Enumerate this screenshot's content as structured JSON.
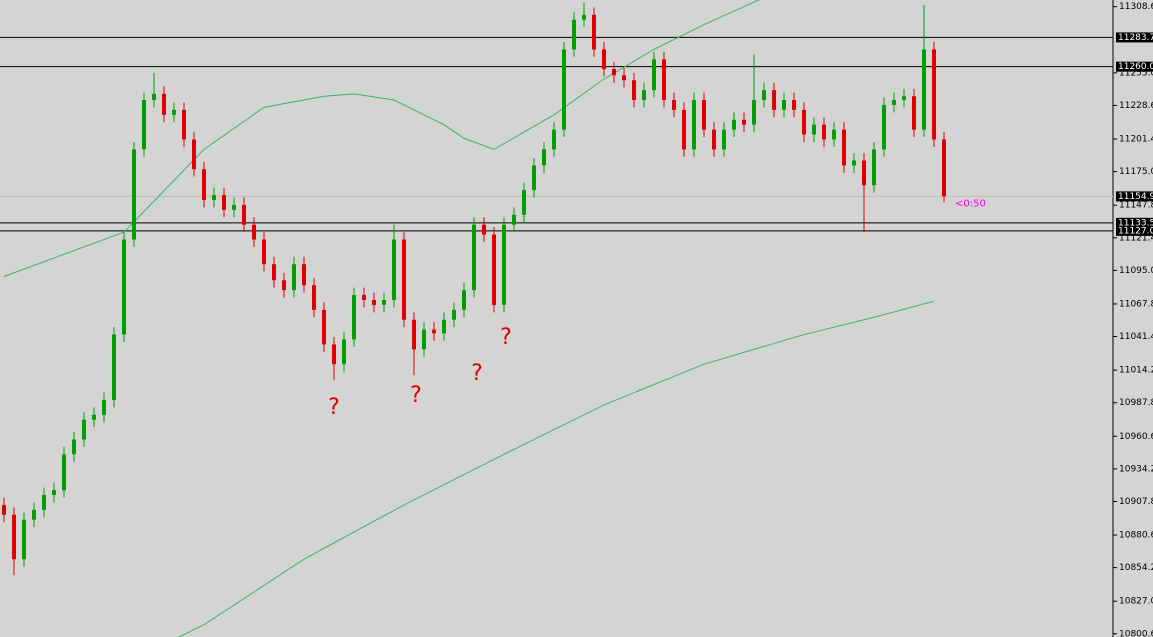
{
  "chart_data": {
    "type": "candlestick",
    "bull_color": "#00a000",
    "bear_color": "#e00000",
    "ylim": [
      10798,
      11314
    ],
    "yticks": [
      {
        "value": 11308.6,
        "label": "11308.60"
      },
      {
        "value": 11255,
        "label": "11255.00"
      },
      {
        "value": 11228.6,
        "label": "11228.60"
      },
      {
        "value": 11201.4,
        "label": "11201.40"
      },
      {
        "value": 11175,
        "label": "11175.00"
      },
      {
        "value": 11147.8,
        "label": "11147.80"
      },
      {
        "value": 11121.4,
        "label": "11121.40"
      },
      {
        "value": 11095,
        "label": "11095.00"
      },
      {
        "value": 11067.8,
        "label": "11067.80"
      },
      {
        "value": 11041.4,
        "label": "11041.40"
      },
      {
        "value": 11014.2,
        "label": "11014.20"
      },
      {
        "value": 10987.8,
        "label": "10987.80"
      },
      {
        "value": 10960.6,
        "label": "10960.60"
      },
      {
        "value": 10934.2,
        "label": "10934.20"
      },
      {
        "value": 10907.8,
        "label": "10907.80"
      },
      {
        "value": 10880.6,
        "label": "10880.60"
      },
      {
        "value": 10854.2,
        "label": "10854.20"
      },
      {
        "value": 10827,
        "label": "10827.00"
      },
      {
        "value": 10800.6,
        "label": "10800.60"
      }
    ],
    "open": [
      10905,
      10897,
      10861,
      10893,
      10901,
      10913,
      10917,
      10946,
      10958,
      10974,
      10978,
      10990,
      11043,
      11120,
      11193,
      11233,
      11238,
      11221,
      11225,
      11201,
      11177,
      11152,
      11156,
      11144,
      11148,
      11132,
      11120,
      11100,
      11087,
      11079,
      11100,
      11083,
      11063,
      11035,
      11019,
      11039,
      11075,
      11071,
      11067,
      11071,
      11120,
      11055,
      11031,
      11047,
      11044,
      11055,
      11063,
      11079,
      11132,
      11124,
      11067,
      11132,
      11140,
      11160,
      11180,
      11193,
      11209,
      11274,
      11298,
      11302,
      11274,
      11258,
      11253,
      11249,
      11233,
      11241,
      11266,
      11233,
      11225,
      11193,
      11233,
      11209,
      11193,
      11209,
      11217,
      11213,
      11233,
      11241,
      11225,
      11233,
      11225,
      11205,
      11213,
      11201,
      11209,
      11180,
      11184,
      11164,
      11193,
      11229,
      11233,
      11236,
      11209,
      11274,
      11201
    ],
    "high": [
      10911,
      10903,
      10899,
      10907,
      10919,
      10923,
      10952,
      10964,
      10980,
      10984,
      10996,
      11049,
      11126,
      11199,
      11239,
      11255,
      11244,
      11231,
      11231,
      11207,
      11183,
      11162,
      11162,
      11154,
      11154,
      11138,
      11126,
      11106,
      11093,
      11106,
      11106,
      11089,
      11069,
      11041,
      11045,
      11081,
      11081,
      11077,
      11077,
      11132,
      11126,
      11061,
      11053,
      11053,
      11061,
      11069,
      11085,
      11138,
      11138,
      11130,
      11138,
      11146,
      11166,
      11186,
      11199,
      11215,
      11280,
      11304,
      11312,
      11308,
      11280,
      11264,
      11259,
      11255,
      11247,
      11272,
      11272,
      11239,
      11231,
      11239,
      11239,
      11215,
      11215,
      11223,
      11223,
      11270,
      11247,
      11247,
      11239,
      11239,
      11231,
      11219,
      11219,
      11215,
      11215,
      11190,
      11190,
      11199,
      11235,
      11239,
      11242,
      11242,
      11310,
      11280,
      11207
    ],
    "low": [
      10891,
      10848,
      10855,
      10887,
      10895,
      10907,
      10911,
      10940,
      10952,
      10968,
      10972,
      10984,
      11037,
      11114,
      11187,
      11227,
      11215,
      11215,
      11195,
      11171,
      11146,
      11146,
      11138,
      11138,
      11126,
      11114,
      11094,
      11081,
      11073,
      11073,
      11077,
      11057,
      11029,
      11006,
      11013,
      11033,
      11065,
      11061,
      11061,
      11065,
      11049,
      11010,
      11025,
      11038,
      11038,
      11049,
      11057,
      11073,
      11118,
      11061,
      11061,
      11126,
      11134,
      11154,
      11174,
      11187,
      11203,
      11268,
      11292,
      11268,
      11252,
      11247,
      11243,
      11227,
      11227,
      11235,
      11227,
      11219,
      11187,
      11187,
      11203,
      11187,
      11187,
      11203,
      11207,
      11207,
      11227,
      11219,
      11219,
      11219,
      11199,
      11199,
      11195,
      11195,
      11174,
      11174,
      11126,
      11158,
      11187,
      11223,
      11227,
      11203,
      11203,
      11195,
      11150
    ],
    "close": [
      10897,
      10861,
      10893,
      10901,
      10913,
      10917,
      10946,
      10958,
      10974,
      10978,
      10990,
      11043,
      11120,
      11193,
      11233,
      11238,
      11221,
      11225,
      11201,
      11177,
      11152,
      11156,
      11144,
      11148,
      11132,
      11120,
      11100,
      11087,
      11079,
      11100,
      11083,
      11063,
      11035,
      11019,
      11039,
      11075,
      11071,
      11067,
      11071,
      11120,
      11055,
      11031,
      11047,
      11044,
      11055,
      11063,
      11079,
      11132,
      11124,
      11067,
      11132,
      11140,
      11160,
      11180,
      11193,
      11209,
      11274,
      11298,
      11302,
      11274,
      11258,
      11253,
      11249,
      11233,
      11241,
      11266,
      11233,
      11225,
      11193,
      11233,
      11209,
      11193,
      11209,
      11217,
      11213,
      11233,
      11241,
      11225,
      11233,
      11225,
      11205,
      11213,
      11201,
      11209,
      11180,
      11184,
      11164,
      11193,
      11229,
      11233,
      11236,
      11209,
      11274,
      11201,
      11154.9
    ],
    "moving_averages": [
      {
        "color": "#3cb371",
        "x": [
          0,
          12,
          20,
          26,
          32,
          35,
          39,
          44,
          46,
          49,
          52,
          55,
          60,
          65,
          70,
          76
        ],
        "values": [
          11090,
          11126,
          11193,
          11227,
          11236,
          11238,
          11233,
          11213,
          11202,
          11193,
          11207,
          11221,
          11250,
          11274,
          11294,
          11316
        ]
      },
      {
        "color": "#3cb371",
        "x": [
          17.5,
          20,
          30,
          40,
          50,
          60,
          70,
          80,
          87,
          93
        ],
        "values": [
          10798,
          10808,
          10861,
          10905,
          10946,
          10986,
          11019,
          11043,
          11057,
          11070
        ]
      }
    ],
    "levels": [
      {
        "value": 11283.7,
        "label": "11283.70"
      },
      {
        "value": 11260,
        "label": "11260.00"
      },
      {
        "value": 11133.5,
        "label": "11133.50"
      },
      {
        "value": 11127,
        "label": "11127.00"
      }
    ],
    "last_price": {
      "value": 11154.9,
      "label": "11154.90"
    },
    "annotations": [
      {
        "text": "?"
      },
      {
        "text": "?"
      },
      {
        "text": "?"
      },
      {
        "text": "?"
      }
    ],
    "timer": "<0:50"
  }
}
